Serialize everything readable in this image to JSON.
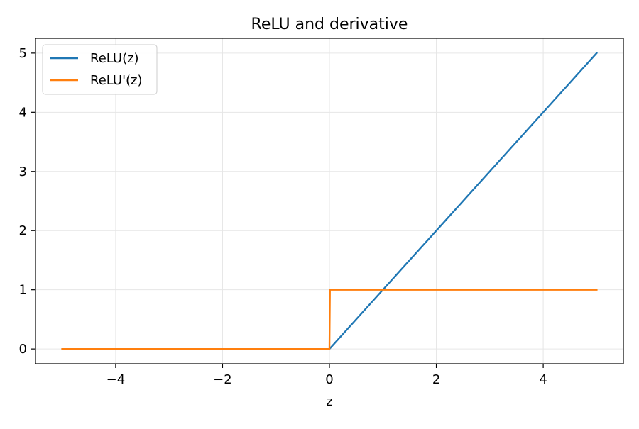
{
  "chart_data": {
    "type": "line",
    "title": "ReLU and derivative",
    "xlabel": "z",
    "ylabel": "",
    "xlim": [
      -5.5,
      5.5
    ],
    "ylim": [
      -0.25,
      5.25
    ],
    "x_ticks": [
      -4,
      -2,
      0,
      2,
      4
    ],
    "x_tick_labels": [
      "−4",
      "−2",
      "0",
      "2",
      "4"
    ],
    "y_ticks": [
      0,
      1,
      2,
      3,
      4,
      5
    ],
    "y_tick_labels": [
      "0",
      "1",
      "2",
      "3",
      "4",
      "5"
    ],
    "grid": true,
    "legend_position": "top-left",
    "series": [
      {
        "name": "ReLU(z)",
        "color": "#1f77b4",
        "x": [
          -5,
          0,
          5
        ],
        "y": [
          0,
          0,
          5
        ]
      },
      {
        "name": "ReLU'(z)",
        "color": "#ff7f0e",
        "x": [
          -5,
          0,
          0.01,
          5
        ],
        "y": [
          0,
          0,
          1,
          1
        ]
      }
    ]
  }
}
